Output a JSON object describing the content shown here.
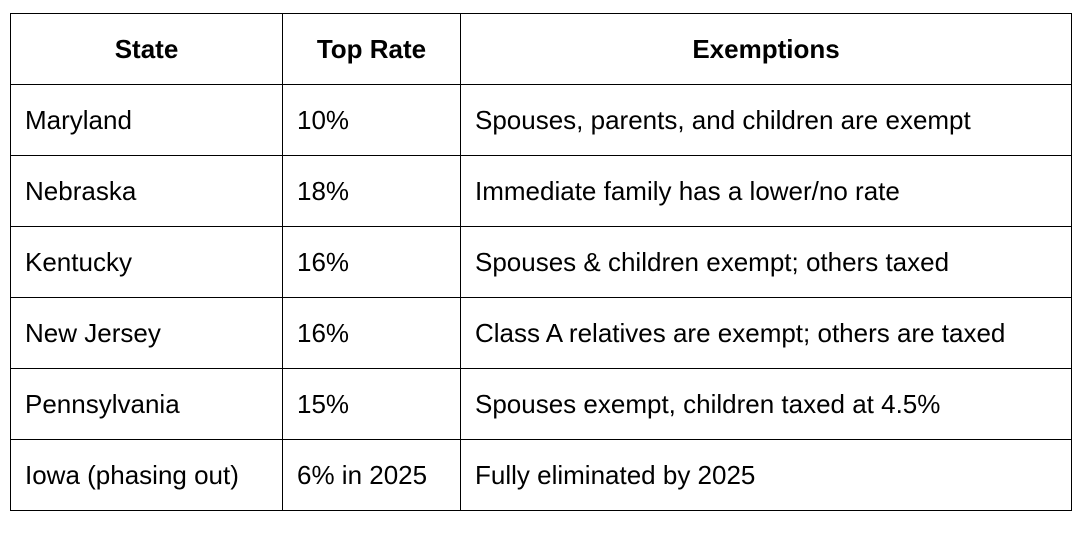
{
  "table": {
    "headers": [
      "State",
      "Top Rate",
      "Exemptions"
    ],
    "rows": [
      [
        "Maryland",
        "10%",
        "Spouses, parents, and children are exempt"
      ],
      [
        "Nebraska",
        "18%",
        "Immediate family has a lower/no rate"
      ],
      [
        "Kentucky",
        "16%",
        "Spouses & children exempt; others taxed"
      ],
      [
        "New Jersey",
        "16%",
        "Class A relatives are exempt; others are taxed"
      ],
      [
        "Pennsylvania",
        "15%",
        "Spouses exempt, children taxed at 4.5%"
      ],
      [
        "Iowa (phasing out)",
        "6% in 2025",
        "Fully eliminated by 2025"
      ]
    ]
  }
}
